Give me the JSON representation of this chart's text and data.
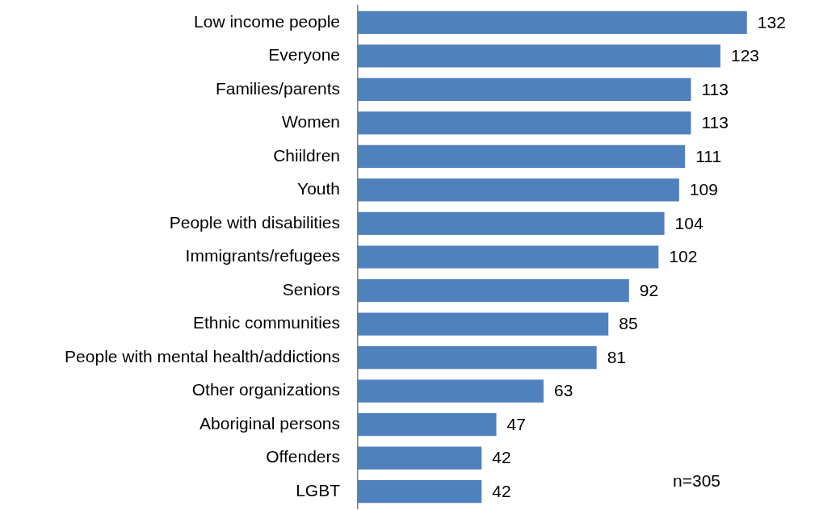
{
  "chart_data": {
    "type": "bar",
    "orientation": "horizontal",
    "categories": [
      "Low income people",
      "Everyone",
      "Families/parents",
      "Women",
      "Chiildren",
      "Youth",
      "People with disabilities",
      "Immigrants/refugees",
      "Seniors",
      "Ethnic communities",
      "People with mental health/addictions",
      "Other organizations",
      "Aboriginal persons",
      "Offenders",
      "LGBT"
    ],
    "values": [
      132,
      123,
      113,
      113,
      111,
      109,
      104,
      102,
      92,
      85,
      81,
      63,
      47,
      42,
      42
    ],
    "color": "#4f81bd",
    "tick_labels": "y",
    "grid": false,
    "legend": false,
    "data_labels": true,
    "annotations": [
      "n=305"
    ]
  }
}
